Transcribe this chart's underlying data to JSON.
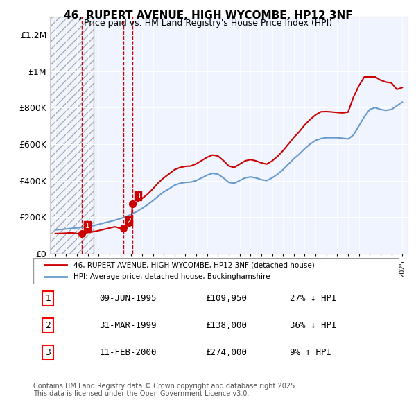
{
  "title": "46, RUPERT AVENUE, HIGH WYCOMBE, HP12 3NF",
  "subtitle": "Price paid vs. HM Land Registry's House Price Index (HPI)",
  "background_color": "#f0f4ff",
  "hatch_region_end_year": 1996.5,
  "ylim": [
    0,
    1300000
  ],
  "yticks": [
    0,
    200000,
    400000,
    600000,
    800000,
    1000000,
    1200000
  ],
  "ytick_labels": [
    "£0",
    "£200K",
    "£400K",
    "£600K",
    "£800K",
    "£1M",
    "£1.2M"
  ],
  "xmin": 1992.5,
  "xmax": 2025.5,
  "sales": [
    {
      "date_num": 1995.44,
      "price": 109950,
      "label": "1"
    },
    {
      "date_num": 1999.25,
      "price": 138000,
      "label": "2"
    },
    {
      "date_num": 2000.11,
      "price": 274000,
      "label": "3"
    }
  ],
  "vlines": [
    1995.44,
    1999.25,
    2000.11
  ],
  "sale_line_color": "#cc0000",
  "hpi_line_color": "#6699cc",
  "legend_items": [
    "46, RUPERT AVENUE, HIGH WYCOMBE, HP12 3NF (detached house)",
    "HPI: Average price, detached house, Buckinghamshire"
  ],
  "table_rows": [
    {
      "num": "1",
      "date": "09-JUN-1995",
      "price": "£109,950",
      "hpi": "27% ↓ HPI"
    },
    {
      "num": "2",
      "date": "31-MAR-1999",
      "price": "£138,000",
      "hpi": "36% ↓ HPI"
    },
    {
      "num": "3",
      "date": "11-FEB-2000",
      "price": "£274,000",
      "hpi": "9% ↑ HPI"
    }
  ],
  "footer": "Contains HM Land Registry data © Crown copyright and database right 2025.\nThis data is licensed under the Open Government Licence v3.0.",
  "hpi_data_x": [
    1993,
    1993.5,
    1994,
    1994.5,
    1995,
    1995.5,
    1996,
    1996.5,
    1997,
    1997.5,
    1998,
    1998.5,
    1999,
    1999.5,
    2000,
    2000.5,
    2001,
    2001.5,
    2002,
    2002.5,
    2003,
    2003.5,
    2004,
    2004.5,
    2005,
    2005.5,
    2006,
    2006.5,
    2007,
    2007.5,
    2008,
    2008.5,
    2009,
    2009.5,
    2010,
    2010.5,
    2011,
    2011.5,
    2012,
    2012.5,
    2013,
    2013.5,
    2014,
    2014.5,
    2015,
    2015.5,
    2016,
    2016.5,
    2017,
    2017.5,
    2018,
    2018.5,
    2019,
    2019.5,
    2020,
    2020.5,
    2021,
    2021.5,
    2022,
    2022.5,
    2023,
    2023.5,
    2024,
    2024.5,
    2025
  ],
  "hpi_data_y": [
    130000,
    132000,
    135000,
    138000,
    141000,
    144000,
    148000,
    153000,
    160000,
    168000,
    175000,
    183000,
    192000,
    202000,
    215000,
    230000,
    248000,
    267000,
    290000,
    315000,
    338000,
    355000,
    375000,
    385000,
    390000,
    392000,
    400000,
    415000,
    430000,
    440000,
    435000,
    415000,
    390000,
    385000,
    400000,
    415000,
    420000,
    415000,
    405000,
    400000,
    415000,
    435000,
    460000,
    490000,
    520000,
    545000,
    575000,
    600000,
    620000,
    630000,
    635000,
    635000,
    635000,
    632000,
    628000,
    650000,
    700000,
    750000,
    790000,
    800000,
    790000,
    785000,
    790000,
    810000,
    830000
  ],
  "price_line_x": [
    1993,
    1993.5,
    1994,
    1994.5,
    1995,
    1995.44,
    1995.5,
    1996,
    1996.5,
    1997,
    1997.5,
    1998,
    1998.5,
    1999,
    1999.25,
    1999.5,
    2000,
    2000.11,
    2000.5,
    2001,
    2001.5,
    2002,
    2002.5,
    2003,
    2003.5,
    2004,
    2004.5,
    2005,
    2005.5,
    2006,
    2006.5,
    2007,
    2007.5,
    2008,
    2008.5,
    2009,
    2009.5,
    2010,
    2010.5,
    2011,
    2011.5,
    2012,
    2012.5,
    2013,
    2013.5,
    2014,
    2014.5,
    2015,
    2015.5,
    2016,
    2016.5,
    2017,
    2017.5,
    2018,
    2018.5,
    2019,
    2019.5,
    2020,
    2020.5,
    2021,
    2021.5,
    2022,
    2022.5,
    2023,
    2023.5,
    2024,
    2024.5,
    2025
  ],
  "price_line_y": [
    109950,
    110500,
    112000,
    114000,
    109950,
    109950,
    111000,
    115000,
    120000,
    126000,
    133000,
    140000,
    147000,
    138000,
    138000,
    142000,
    155000,
    274000,
    282000,
    302000,
    325000,
    355000,
    388000,
    415000,
    437000,
    460000,
    472000,
    478000,
    480000,
    492000,
    510000,
    528000,
    540000,
    535000,
    510000,
    480000,
    472000,
    490000,
    508000,
    515000,
    508000,
    497000,
    490000,
    508000,
    533000,
    564000,
    600000,
    637000,
    668000,
    705000,
    735000,
    760000,
    777000,
    778000,
    776000,
    773000,
    771000,
    775000,
    858000,
    920000,
    968000,
    968000,
    968000,
    950000,
    940000,
    935000,
    900000,
    910000
  ]
}
